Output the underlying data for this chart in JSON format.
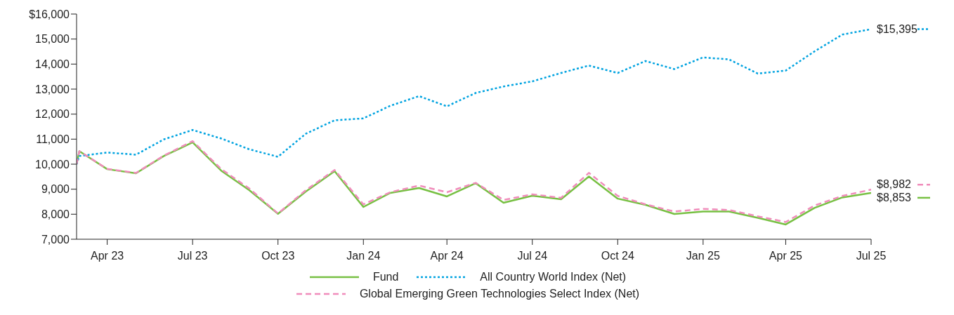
{
  "chart_data": {
    "type": "line",
    "x": [
      "2023-03-28",
      "2023-03-31",
      "2023-04-30",
      "2023-05-31",
      "2023-06-30",
      "2023-07-31",
      "2023-08-31",
      "2023-09-30",
      "2023-10-31",
      "2023-11-30",
      "2023-12-31",
      "2024-01-31",
      "2024-02-29",
      "2024-03-31",
      "2024-04-30",
      "2024-05-31",
      "2024-06-30",
      "2024-07-31",
      "2024-08-31",
      "2024-09-30",
      "2024-10-31",
      "2024-11-30",
      "2024-12-31",
      "2025-01-31",
      "2025-02-28",
      "2025-03-31",
      "2025-04-30",
      "2025-05-31",
      "2025-06-30",
      "2025-07-31"
    ],
    "series": [
      {
        "name": "Fund",
        "color": "#77c043",
        "line_style": "solid",
        "values": [
          10000,
          10519,
          9800,
          9636,
          10326,
          10870,
          9735,
          8963,
          8018,
          8907,
          9720,
          8290,
          8851,
          9045,
          8711,
          9240,
          8459,
          8739,
          8599,
          9507,
          8622,
          8374,
          8010,
          8106,
          8106,
          7853,
          7590,
          8252,
          8670,
          8853
        ],
        "value_labels": [
          null,
          null,
          null,
          null,
          null,
          null,
          null,
          null,
          null,
          null,
          null,
          null,
          null,
          null,
          null,
          null,
          null,
          null,
          null,
          null,
          null,
          null,
          null,
          null,
          null,
          null,
          null,
          null,
          null,
          "$8,853"
        ]
      },
      {
        "name": "All Country World Index (Net)",
        "color": "#00a3e0",
        "line_style": "dotted",
        "values": [
          10000,
          10326,
          10466,
          10379,
          10990,
          11366,
          11024,
          10595,
          10295,
          11217,
          11753,
          11829,
          12333,
          12720,
          12311,
          12846,
          13104,
          13309,
          13645,
          13942,
          13645,
          14122,
          13800,
          14268,
          14184,
          13620,
          13740,
          14506,
          15179,
          15395
        ],
        "value_labels": [
          null,
          null,
          null,
          null,
          null,
          null,
          null,
          null,
          null,
          null,
          null,
          null,
          null,
          null,
          null,
          null,
          null,
          null,
          null,
          null,
          null,
          null,
          null,
          null,
          null,
          null,
          null,
          null,
          null,
          "$15,395"
        ]
      },
      {
        "name": "Global Emerging Green Technologies Select Index (Net)",
        "color": "#f08cbb",
        "line_style": "dashed",
        "values": [
          10000,
          10519,
          9810,
          9650,
          10340,
          10920,
          9800,
          9030,
          8030,
          8960,
          9767,
          8394,
          8880,
          9145,
          8880,
          9252,
          8571,
          8796,
          8655,
          9653,
          8732,
          8394,
          8106,
          8215,
          8167,
          7915,
          7688,
          8346,
          8732,
          8982
        ],
        "value_labels": [
          null,
          null,
          null,
          null,
          null,
          null,
          null,
          null,
          null,
          null,
          null,
          null,
          null,
          null,
          null,
          null,
          null,
          null,
          null,
          null,
          null,
          null,
          null,
          null,
          null,
          null,
          null,
          null,
          null,
          "$8,982"
        ]
      }
    ],
    "xlim": [
      "2023-03-28",
      "2025-07-31"
    ],
    "xticks": [
      {
        "value": "2023-04-30",
        "label": "Apr 23"
      },
      {
        "value": "2023-07-31",
        "label": "Jul 23"
      },
      {
        "value": "2023-10-31",
        "label": "Oct 23"
      },
      {
        "value": "2024-01-31",
        "label": "Jan 24"
      },
      {
        "value": "2024-04-30",
        "label": "Apr 24"
      },
      {
        "value": "2024-07-31",
        "label": "Jul 24"
      },
      {
        "value": "2024-10-31",
        "label": "Oct 24"
      },
      {
        "value": "2025-01-31",
        "label": "Jan 25"
      },
      {
        "value": "2025-04-30",
        "label": "Apr 25"
      },
      {
        "value": "2025-07-31",
        "label": "Jul 25"
      }
    ],
    "ylim": [
      7000,
      16000
    ],
    "yticks": [
      {
        "value": 7000,
        "label": "7,000"
      },
      {
        "value": 8000,
        "label": "8,000"
      },
      {
        "value": 9000,
        "label": "9,000"
      },
      {
        "value": 10000,
        "label": "10,000"
      },
      {
        "value": 11000,
        "label": "11,000"
      },
      {
        "value": 12000,
        "label": "12,000"
      },
      {
        "value": 13000,
        "label": "13,000"
      },
      {
        "value": 14000,
        "label": "14,000"
      },
      {
        "value": 15000,
        "label": "15,000"
      },
      {
        "value": 16000,
        "label": "$16,000"
      }
    ],
    "grid": false,
    "legend": "bottom",
    "marker": "none"
  }
}
